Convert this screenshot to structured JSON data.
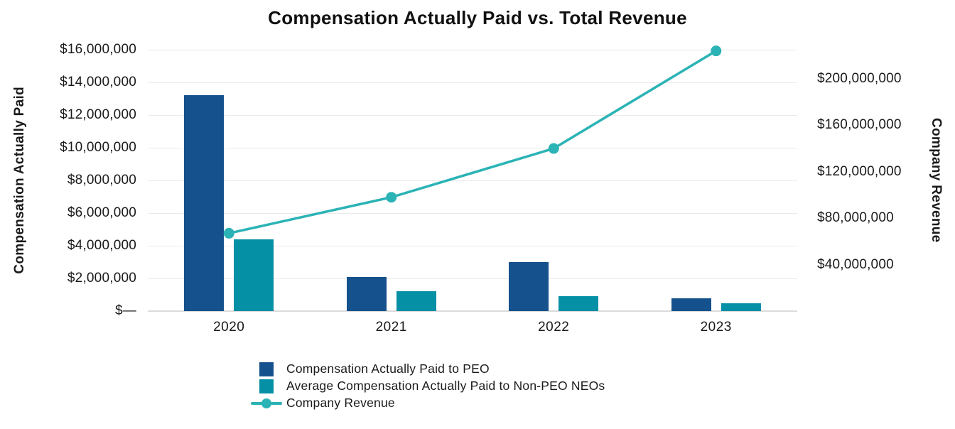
{
  "chart_data": {
    "type": "combo",
    "title": "Compensation Actually Paid vs. Total Revenue",
    "categories": [
      "2020",
      "2021",
      "2022",
      "2023"
    ],
    "series": [
      {
        "name": "Compensation Actually Paid to PEO",
        "type": "bar",
        "axis": "left",
        "color": "#15518C",
        "values": [
          13200000,
          2100000,
          3000000,
          800000
        ]
      },
      {
        "name": "Average Compensation Actually Paid to Non-PEO NEOs",
        "type": "bar",
        "axis": "left",
        "color": "#0690A6",
        "values": [
          4400000,
          1200000,
          900000,
          500000
        ]
      },
      {
        "name": "Company Revenue",
        "type": "line",
        "axis": "right",
        "color": "#2BB3B5",
        "values": [
          67000000,
          98000000,
          140000000,
          224000000
        ]
      }
    ],
    "left_axis": {
      "label": "Compensation Actually Paid",
      "min": 0,
      "max": 16000000,
      "tick_values": [
        0,
        2000000,
        4000000,
        6000000,
        8000000,
        10000000,
        12000000,
        14000000,
        16000000
      ],
      "tick_labels": [
        "$—",
        "$2,000,000",
        "$4,000,000",
        "$6,000,000",
        "$8,000,000",
        "$10,000,000",
        "$12,000,000",
        "$14,000,000",
        "$16,000,000"
      ]
    },
    "right_axis": {
      "label": "Company Revenue",
      "min": 0,
      "max": 225000000,
      "tick_values": [
        40000000,
        80000000,
        120000000,
        160000000,
        200000000
      ],
      "tick_labels": [
        "$40,000,000",
        "$80,000,000",
        "$120,000,000",
        "$160,000,000",
        "$200,000,000"
      ]
    },
    "grid": true,
    "legend_position": "bottom-left",
    "colors": {
      "grid": "#EAEAEA",
      "baseline": "#DBDBDB",
      "text": "#1A1A1A",
      "title": "#111111"
    }
  }
}
